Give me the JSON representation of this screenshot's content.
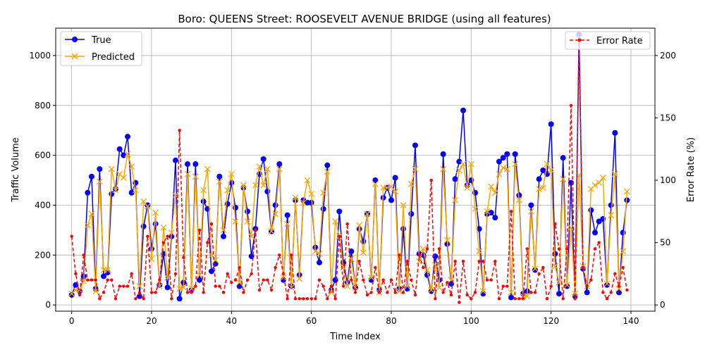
{
  "chart_data": {
    "type": "line",
    "title": "Boro: QUEENS Street: ROOSEVELT AVENUE BRIDGE (using all features)",
    "xlabel": "Time Index",
    "ylabel": "Traffic Volume",
    "y2label": "Error Rate (%)",
    "xlim": [
      -4,
      146
    ],
    "ylim": [
      -25,
      1110
    ],
    "y2lim": [
      -5,
      222
    ],
    "xticks": [
      0,
      20,
      40,
      60,
      80,
      100,
      120,
      140
    ],
    "yticks": [
      0,
      200,
      400,
      600,
      800,
      1000
    ],
    "y2ticks": [
      0,
      50,
      100,
      150,
      200
    ],
    "grid": true,
    "legend_left": "upper-left",
    "legend_right": "upper-right",
    "colors": {
      "true": "#0000ff",
      "predicted": "#ffa500",
      "error": "#ff0000"
    },
    "series": [
      {
        "name": "True",
        "axis": "left",
        "values": [
          40,
          80,
          55,
          115,
          450,
          515,
          65,
          545,
          115,
          130,
          445,
          465,
          625,
          600,
          675,
          450,
          490,
          35,
          315,
          400,
          225,
          325,
          80,
          205,
          70,
          275,
          580,
          25,
          90,
          565,
          60,
          565,
          100,
          415,
          385,
          135,
          165,
          515,
          275,
          405,
          490,
          390,
          75,
          470,
          375,
          195,
          305,
          525,
          585,
          455,
          295,
          400,
          565,
          100,
          360,
          75,
          420,
          120,
          420,
          410,
          410,
          230,
          170,
          385,
          560,
          60,
          100,
          375,
          170,
          90,
          215,
          70,
          305,
          255,
          365,
          100,
          500,
          60,
          430,
          470,
          420,
          510,
          65,
          305,
          65,
          365,
          640,
          205,
          200,
          120,
          55,
          195,
          100,
          605,
          245,
          85,
          505,
          575,
          780,
          480,
          500,
          450,
          305,
          45,
          365,
          370,
          350,
          575,
          590,
          605,
          30,
          605,
          440,
          45,
          55,
          400,
          140,
          505,
          540,
          525,
          725,
          205,
          45,
          590,
          75,
          490,
          35,
          1085,
          145,
          50,
          380,
          290,
          335,
          345,
          80,
          400,
          690,
          50,
          290,
          420
        ]
      },
      {
        "name": "Predicted",
        "axis": "left",
        "values": [
          45,
          60,
          60,
          95,
          320,
          365,
          55,
          495,
          140,
          140,
          545,
          460,
          525,
          510,
          605,
          555,
          460,
          75,
          415,
          395,
          185,
          370,
          75,
          310,
          110,
          290,
          440,
          65,
          70,
          525,
          65,
          515,
          120,
          460,
          545,
          200,
          180,
          495,
          300,
          460,
          525,
          335,
          90,
          480,
          335,
          275,
          480,
          555,
          480,
          545,
          295,
          365,
          545,
          110,
          325,
          70,
          430,
          105,
          410,
          500,
          445,
          215,
          205,
          450,
          535,
          50,
          335,
          275,
          150,
          75,
          185,
          70,
          320,
          210,
          365,
          110,
          485,
          50,
          470,
          470,
          475,
          455,
          55,
          400,
          75,
          485,
          545,
          175,
          225,
          140,
          60,
          160,
          70,
          545,
          260,
          100,
          420,
          540,
          565,
          470,
          565,
          385,
          215,
          55,
          375,
          475,
          450,
          525,
          550,
          545,
          50,
          565,
          420,
          35,
          35,
          375,
          145,
          465,
          470,
          565,
          540,
          155,
          90,
          505,
          80,
          310,
          45,
          520,
          155,
          75,
          465,
          480,
          490,
          510,
          85,
          360,
          525,
          65,
          215,
          455
        ]
      },
      {
        "name": "Error Rate",
        "axis": "right",
        "values": [
          55,
          25,
          8,
          40,
          20,
          20,
          20,
          5,
          10,
          20,
          20,
          5,
          15,
          15,
          15,
          25,
          5,
          10,
          5,
          55,
          10,
          10,
          20,
          50,
          55,
          5,
          25,
          140,
          38,
          10,
          10,
          15,
          60,
          10,
          50,
          65,
          15,
          15,
          10,
          25,
          18,
          20,
          30,
          10,
          20,
          25,
          60,
          12,
          20,
          20,
          12,
          30,
          40,
          25,
          5,
          40,
          5,
          5,
          5,
          5,
          5,
          5,
          20,
          15,
          5,
          15,
          5,
          55,
          15,
          65,
          20,
          10,
          35,
          20,
          8,
          10,
          30,
          10,
          20,
          10,
          20,
          10,
          40,
          10,
          35,
          20,
          8,
          40,
          30,
          45,
          100,
          5,
          45,
          10,
          18,
          8,
          35,
          2,
          35,
          8,
          5,
          10,
          35,
          35,
          20,
          20,
          35,
          5,
          15,
          15,
          75,
          5,
          5,
          5,
          45,
          10,
          10,
          25,
          30,
          5,
          15,
          65,
          45,
          5,
          45,
          160,
          5,
          210,
          30,
          15,
          20,
          45,
          50,
          10,
          5,
          10,
          25,
          15,
          30,
          12
        ]
      }
    ]
  }
}
